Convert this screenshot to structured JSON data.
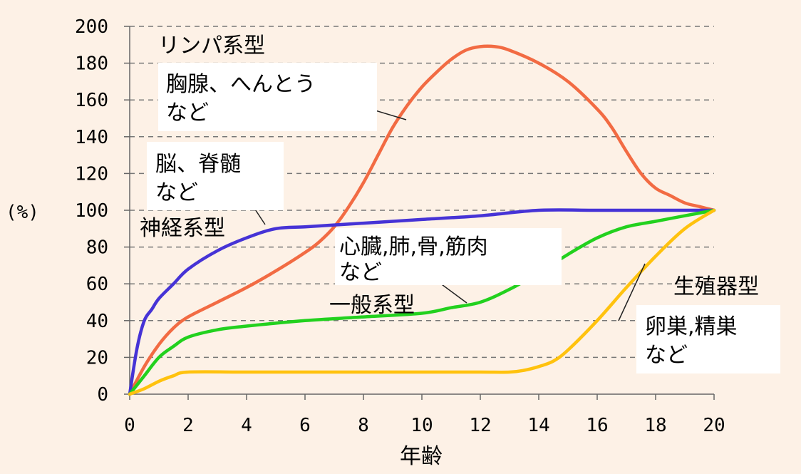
{
  "chart_data": {
    "type": "line",
    "title": "",
    "xlabel": "年齢",
    "ylabel": "(%)",
    "xlim": [
      0,
      20
    ],
    "ylim": [
      0,
      200
    ],
    "x_ticks": [
      0,
      2,
      4,
      6,
      8,
      10,
      12,
      14,
      16,
      18,
      20
    ],
    "y_ticks": [
      0,
      20,
      40,
      60,
      80,
      100,
      120,
      140,
      160,
      180,
      200
    ],
    "grid": "horizontal dashed",
    "series": [
      {
        "name": "リンパ系型",
        "color": "#f26b43",
        "x": [
          0,
          0.5,
          1,
          1.5,
          2,
          3,
          4,
          5,
          6,
          6.5,
          7,
          7.5,
          8,
          8.5,
          9,
          9.5,
          10,
          10.5,
          11,
          11.5,
          12,
          12.5,
          13,
          14,
          15,
          16,
          16.5,
          17,
          17.5,
          18,
          18.5,
          19,
          19.5,
          20
        ],
        "y": [
          0,
          15,
          27,
          36,
          42,
          50,
          58,
          67,
          77,
          83,
          91,
          102,
          115,
          130,
          145,
          157,
          167,
          175,
          182,
          187,
          189,
          189,
          187,
          180,
          170,
          155,
          145,
          132,
          120,
          112,
          108,
          104,
          102,
          100
        ]
      },
      {
        "name": "神経系型",
        "color": "#4633d6",
        "x": [
          0,
          0.25,
          0.5,
          0.75,
          1,
          1.5,
          2,
          3,
          4,
          5,
          6,
          7,
          8,
          10,
          12,
          14,
          16,
          18,
          20
        ],
        "y": [
          0,
          25,
          40,
          46,
          52,
          60,
          68,
          78,
          85,
          90,
          91,
          92,
          93,
          95,
          97,
          100,
          100,
          100,
          100
        ]
      },
      {
        "name": "一般系型",
        "color": "#22d11e",
        "x": [
          0,
          0.5,
          1,
          1.5,
          2,
          3,
          4,
          6,
          8,
          10,
          11,
          12,
          13,
          14,
          15,
          16,
          17,
          18,
          19,
          20
        ],
        "y": [
          0,
          10,
          20,
          26,
          31,
          35,
          37,
          40,
          42,
          44,
          47,
          50,
          57,
          66,
          76,
          85,
          91,
          94,
          97,
          100
        ]
      },
      {
        "name": "生殖器型",
        "color": "#ffc20e",
        "x": [
          0,
          0.5,
          1,
          1.5,
          2,
          4,
          6,
          8,
          10,
          12,
          13,
          13.5,
          14,
          14.5,
          15,
          16,
          17,
          18,
          19,
          20
        ],
        "y": [
          0,
          3,
          7,
          10,
          12,
          12,
          12,
          12,
          12,
          12,
          12,
          13,
          15,
          18,
          24,
          40,
          58,
          75,
          90,
          100
        ]
      }
    ],
    "annotations": [
      {
        "id": "lymph_type",
        "text": "リンパ系型"
      },
      {
        "id": "thymus",
        "lines": [
          "胸腺、へんとう",
          "など"
        ]
      },
      {
        "id": "brain",
        "lines": [
          "脳、脊髄",
          "など"
        ]
      },
      {
        "id": "neural_type",
        "text": "神経系型"
      },
      {
        "id": "heart",
        "lines": [
          "心臓,肺,骨,筋肉",
          "など"
        ]
      },
      {
        "id": "general_type",
        "text": "一般系型"
      },
      {
        "id": "repro_type",
        "text": "生殖器型"
      },
      {
        "id": "ovary",
        "lines": [
          "卵巣,精巣",
          "など"
        ]
      }
    ]
  }
}
